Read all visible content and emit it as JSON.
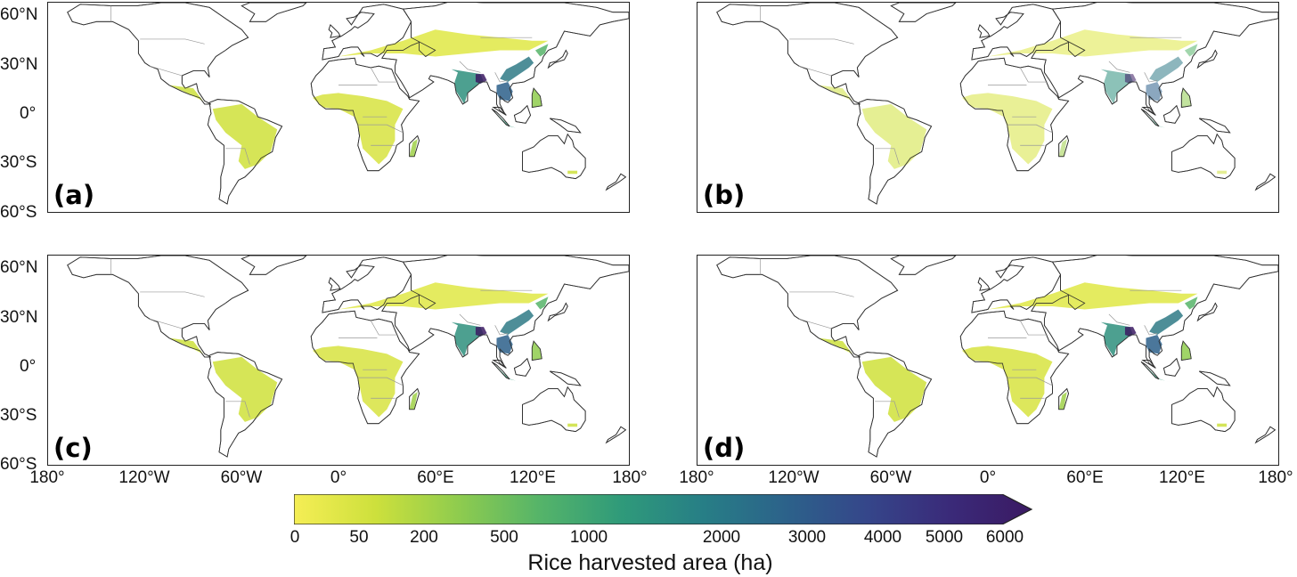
{
  "panels": [
    {
      "label": "(a)"
    },
    {
      "label": "(b)"
    },
    {
      "label": "(c)"
    },
    {
      "label": "(d)"
    }
  ],
  "lat_ticks": [
    "60°N",
    "30°N",
    "0°",
    "30°S",
    "60°S"
  ],
  "lon_ticks": [
    "180°",
    "120°W",
    "60°W",
    "0°",
    "60°E",
    "120°E",
    "180°"
  ],
  "colorbar": {
    "label": "Rice harvested area (ha)",
    "ticks": [
      "0",
      "50",
      "200",
      "500",
      "1000",
      "2000",
      "3000",
      "4000",
      "5000",
      "6000"
    ],
    "colors": [
      "#f5ee55",
      "#cde03c",
      "#8fcc4e",
      "#55b469",
      "#2f9a7a",
      "#277e86",
      "#2c628a",
      "#35468a",
      "#3a2a79",
      "#3b1a63"
    ],
    "extend": "max"
  },
  "map_extent": {
    "lon": [
      -180,
      180
    ],
    "lat": [
      -60,
      72
    ]
  },
  "colors": {
    "land_outline": "#8a8a8a",
    "coast": "#222222",
    "frame": "#222222"
  }
}
